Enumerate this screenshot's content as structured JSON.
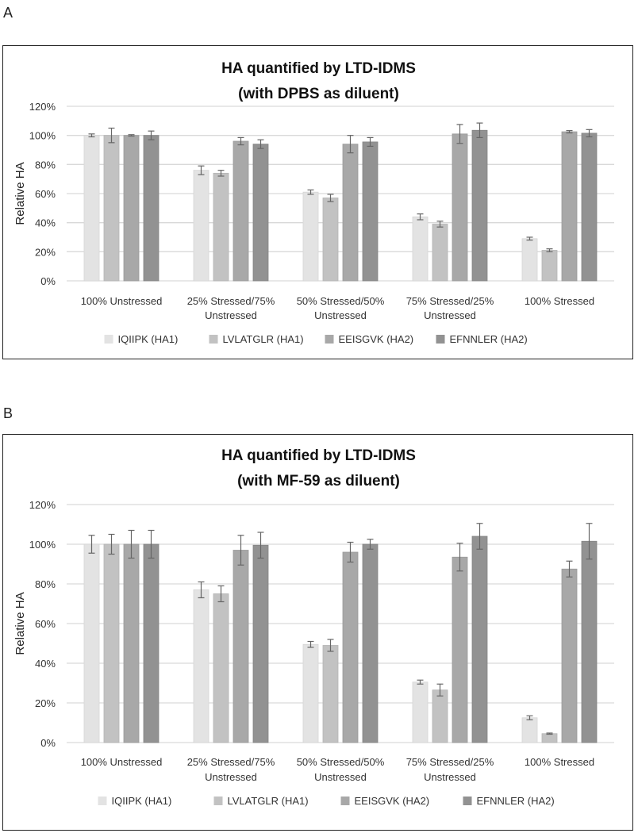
{
  "panels": [
    {
      "label": "A"
    },
    {
      "label": "B"
    }
  ],
  "chart_data": [
    {
      "type": "bar",
      "title": "HA quantified by LTD-IDMS",
      "subtitle": "(with DPBS as diluent)",
      "xlabel": "",
      "ylabel": "Relative HA",
      "ylim": [
        0,
        120
      ],
      "yticks": [
        "0%",
        "20%",
        "40%",
        "60%",
        "80%",
        "100%",
        "120%"
      ],
      "grid": true,
      "legend": "bottom",
      "categories": [
        [
          "100% Unstressed"
        ],
        [
          "25% Stressed/75%",
          "Unstressed"
        ],
        [
          "50% Stressed/50%",
          "Unstressed"
        ],
        [
          "75% Stressed/25%",
          "Unstressed"
        ],
        [
          "100% Stressed"
        ]
      ],
      "series": [
        {
          "name": "IQIIPK (HA1)",
          "color": "#e3e3e3",
          "values": [
            100,
            76,
            61,
            44,
            29
          ],
          "errors": [
            1,
            3,
            1.5,
            2,
            1
          ]
        },
        {
          "name": "LVLATGLR (HA1)",
          "color": "#c2c2c2",
          "values": [
            100,
            74,
            57,
            39,
            21
          ],
          "errors": [
            5,
            2,
            2.5,
            2,
            1
          ]
        },
        {
          "name": "EEISGVK (HA2)",
          "color": "#a8a8a8",
          "values": [
            100,
            96,
            94,
            101,
            102.5
          ],
          "errors": [
            0.5,
            2.5,
            6,
            6.5,
            0.8
          ]
        },
        {
          "name": "EFNNLER (HA2)",
          "color": "#929292",
          "values": [
            100,
            94,
            95.5,
            103.5,
            101.5
          ],
          "errors": [
            3,
            3,
            3,
            5,
            2.5
          ]
        }
      ]
    },
    {
      "type": "bar",
      "title": "HA quantified by LTD-IDMS",
      "subtitle": "(with MF-59 as diluent)",
      "xlabel": "",
      "ylabel": "Relative HA",
      "ylim": [
        0,
        120
      ],
      "yticks": [
        "0%",
        "20%",
        "40%",
        "60%",
        "80%",
        "100%",
        "120%"
      ],
      "grid": true,
      "legend": "bottom",
      "categories": [
        [
          "100% Unstressed"
        ],
        [
          "25% Stressed/75%",
          "Unstressed"
        ],
        [
          "50% Stressed/50%",
          "Unstressed"
        ],
        [
          "75% Stressed/25%",
          "Unstressed"
        ],
        [
          "100% Stressed"
        ]
      ],
      "series": [
        {
          "name": "IQIIPK (HA1)",
          "color": "#e3e3e3",
          "values": [
            100,
            77,
            49.5,
            30.5,
            12.5
          ],
          "errors": [
            4.5,
            4,
            1.5,
            1,
            1
          ]
        },
        {
          "name": "LVLATGLR (HA1)",
          "color": "#c2c2c2",
          "values": [
            100,
            75,
            49,
            26.5,
            4.5
          ],
          "errors": [
            5,
            4,
            3,
            3,
            0.3
          ]
        },
        {
          "name": "EEISGVK (HA2)",
          "color": "#a8a8a8",
          "values": [
            100,
            97,
            96,
            93.5,
            87.5
          ],
          "errors": [
            7,
            7.5,
            5,
            7,
            4
          ]
        },
        {
          "name": "EFNNLER (HA2)",
          "color": "#929292",
          "values": [
            100,
            99.5,
            100,
            104,
            101.5
          ],
          "errors": [
            7,
            6.5,
            2.5,
            6.5,
            9
          ]
        }
      ]
    }
  ]
}
